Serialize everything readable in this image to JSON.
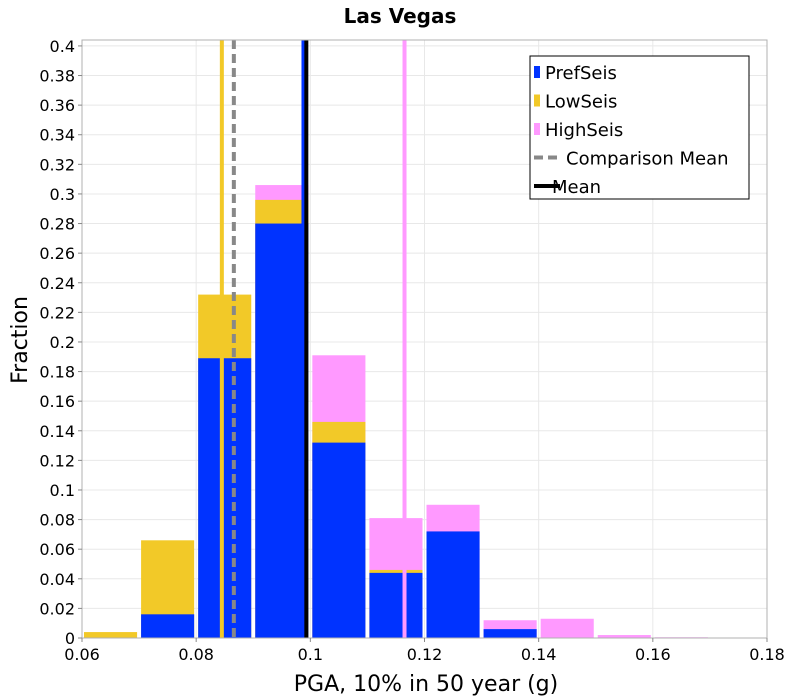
{
  "chart_data": {
    "type": "bar",
    "title": "Las Vegas",
    "xlabel": "PGA, 10% in 50 year (g)",
    "ylabel": "Fraction",
    "xlim": [
      0.06,
      0.18
    ],
    "ylim": [
      0,
      0.404
    ],
    "x_ticks": [
      "0.06",
      "0.08",
      "0.1",
      "0.12",
      "0.14",
      "0.16",
      "0.18"
    ],
    "y_ticks": [
      "0",
      "0.02",
      "0.04",
      "0.06",
      "0.08",
      "0.1",
      "0.12",
      "0.14",
      "0.16",
      "0.18",
      "0.2",
      "0.22",
      "0.24",
      "0.26",
      "0.28",
      "0.3",
      "0.32",
      "0.34",
      "0.36",
      "0.38",
      "0.4"
    ],
    "grid": true,
    "bin_width": 0.01,
    "bin_starts": [
      0.06,
      0.07,
      0.08,
      0.09,
      0.1,
      0.11,
      0.12,
      0.13,
      0.14,
      0.15,
      0.16
    ],
    "series": [
      {
        "name": "PrefSeis",
        "color": "#0033ff",
        "values": [
          0.0,
          0.016,
          0.189,
          0.28,
          0.132,
          0.044,
          0.072,
          0.006,
          0.0,
          0.0,
          0.0
        ]
      },
      {
        "name": "LowSeis",
        "color": "#f2c928",
        "values": [
          0.004,
          0.066,
          0.232,
          0.296,
          0.146,
          0.046,
          0.0,
          0.0,
          0.0,
          0.0,
          0.0
        ]
      },
      {
        "name": "HighSeis",
        "color": "#ff99ff",
        "values": [
          0.0,
          0.0,
          0.0,
          0.306,
          0.191,
          0.081,
          0.09,
          0.012,
          0.013,
          0.002,
          0.0005
        ]
      }
    ],
    "vlines": [
      {
        "series": "PrefSeis",
        "x": 0.0988,
        "color": "#0033ff",
        "style": "solid"
      },
      {
        "series": "LowSeis",
        "x": 0.0845,
        "color": "#f2c928",
        "style": "solid"
      },
      {
        "series": "HighSeis",
        "x": 0.1165,
        "color": "#ff99ff",
        "style": "solid"
      },
      {
        "series": "Comparison Mean",
        "x": 0.0866,
        "color": "#888888",
        "style": "dashed"
      },
      {
        "series": "Mean",
        "x": 0.0993,
        "color": "#000000",
        "style": "solid"
      }
    ],
    "legend": {
      "placement": "top-right",
      "entries": [
        {
          "label": "PrefSeis",
          "color": "#0033ff",
          "kind": "box"
        },
        {
          "label": "LowSeis",
          "color": "#f2c928",
          "kind": "box"
        },
        {
          "label": "HighSeis",
          "color": "#ff99ff",
          "kind": "box"
        },
        {
          "label": "Comparison Mean",
          "color": "#888888",
          "kind": "dashed"
        },
        {
          "label": "Mean",
          "color": "#000000",
          "kind": "line"
        }
      ]
    }
  }
}
